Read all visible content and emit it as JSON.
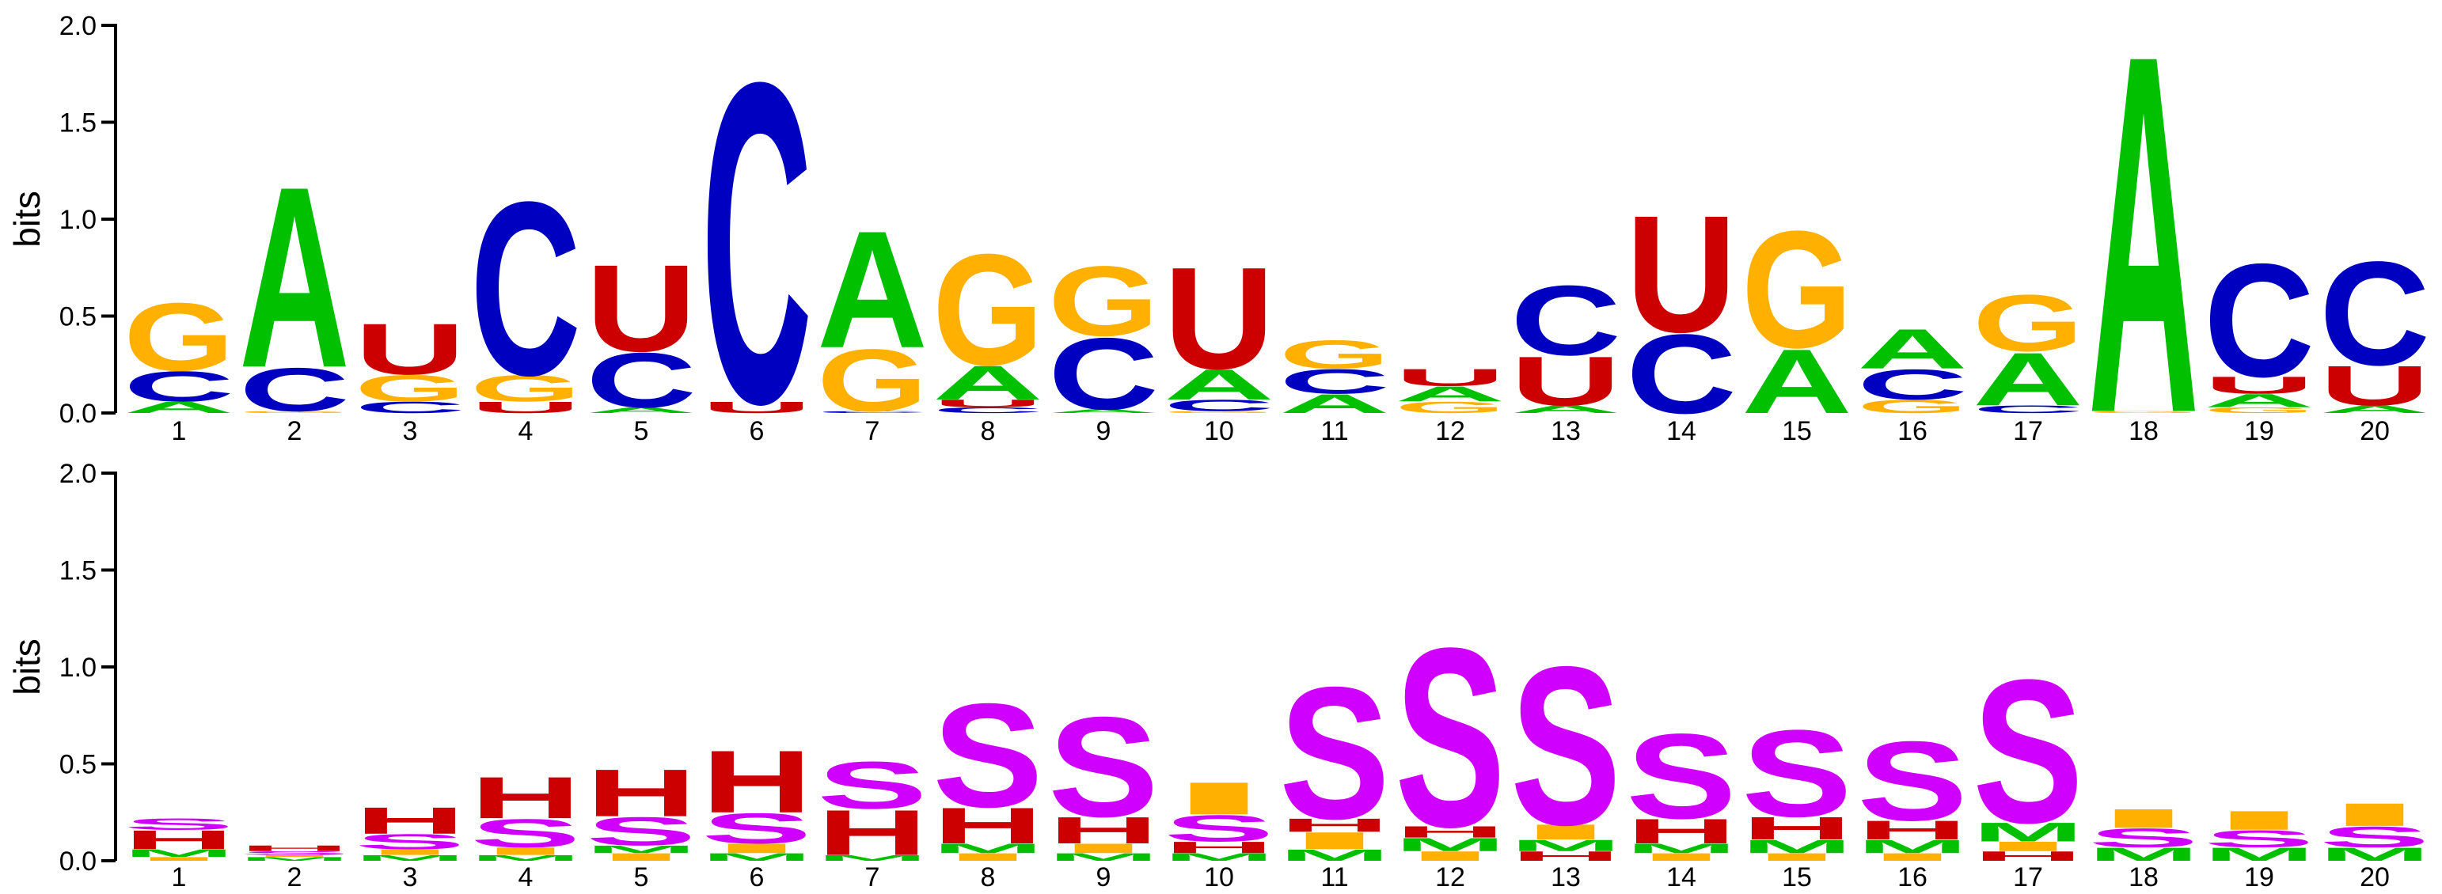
{
  "colors": {
    "A": "#00c000",
    "C": "#0000c0",
    "G": "#ffb000",
    "U": "#cc0000",
    "S": "#d000ff",
    "H": "#cc0000",
    "I": "#ffb000",
    "M": "#00c000"
  },
  "chart_data": [
    {
      "type": "sequence-logo",
      "ylabel": "bits",
      "ylim": [
        0,
        2.0
      ],
      "yticks": [
        "0.0",
        "0.5",
        "1.0",
        "1.5",
        "2.0"
      ],
      "positions": [
        "1",
        "2",
        "3",
        "4",
        "5",
        "6",
        "7",
        "8",
        "9",
        "10",
        "11",
        "12",
        "13",
        "14",
        "15",
        "16",
        "17",
        "18",
        "19",
        "20"
      ],
      "stacks": [
        [
          [
            "A",
            0.06
          ],
          [
            "C",
            0.16
          ],
          [
            "G",
            0.36
          ]
        ],
        [
          [
            "G",
            0.01
          ],
          [
            "C",
            0.23
          ],
          [
            "A",
            0.96
          ]
        ],
        [
          [
            "C",
            0.06
          ],
          [
            "G",
            0.14
          ],
          [
            "U",
            0.27
          ]
        ],
        [
          [
            "U",
            0.06
          ],
          [
            "G",
            0.14
          ],
          [
            "C",
            0.92
          ]
        ],
        [
          [
            "A",
            0.03
          ],
          [
            "C",
            0.29
          ],
          [
            "U",
            0.46
          ]
        ],
        [
          [
            "U",
            0.06
          ],
          [
            "C",
            1.7
          ]
        ],
        [
          [
            "C",
            0.01
          ],
          [
            "G",
            0.33
          ],
          [
            "A",
            0.62
          ]
        ],
        [
          [
            "C",
            0.03
          ],
          [
            "U",
            0.04
          ],
          [
            "A",
            0.18
          ],
          [
            "G",
            0.59
          ]
        ],
        [
          [
            "A",
            0.02
          ],
          [
            "C",
            0.38
          ],
          [
            "G",
            0.37
          ]
        ],
        [
          [
            "G",
            0.01
          ],
          [
            "C",
            0.06
          ],
          [
            "A",
            0.16
          ],
          [
            "U",
            0.54
          ]
        ],
        [
          [
            "A",
            0.1
          ],
          [
            "C",
            0.13
          ],
          [
            "G",
            0.15
          ]
        ],
        [
          [
            "G",
            0.06
          ],
          [
            "A",
            0.08
          ],
          [
            "U",
            0.09
          ]
        ],
        [
          [
            "A",
            0.04
          ],
          [
            "U",
            0.26
          ],
          [
            "C",
            0.37
          ]
        ],
        [
          [
            "C",
            0.42
          ],
          [
            "U",
            0.62
          ]
        ],
        [
          [
            "A",
            0.34
          ],
          [
            "G",
            0.62
          ]
        ],
        [
          [
            "G",
            0.07
          ],
          [
            "C",
            0.16
          ],
          [
            "A",
            0.21
          ]
        ],
        [
          [
            "C",
            0.04
          ],
          [
            "A",
            0.28
          ],
          [
            "G",
            0.3
          ]
        ],
        [
          [
            "G",
            0.01
          ],
          [
            "A",
            1.9
          ]
        ],
        [
          [
            "G",
            0.03
          ],
          [
            "A",
            0.07
          ],
          [
            "U",
            0.09
          ],
          [
            "C",
            0.6
          ]
        ],
        [
          [
            "A",
            0.04
          ],
          [
            "U",
            0.21
          ],
          [
            "C",
            0.55
          ]
        ]
      ]
    },
    {
      "type": "sequence-logo",
      "ylabel": "bits",
      "ylim": [
        0,
        2.0
      ],
      "yticks": [
        "0.0",
        "0.5",
        "1.0",
        "1.5",
        "2.0"
      ],
      "positions": [
        "1",
        "2",
        "3",
        "4",
        "5",
        "6",
        "7",
        "8",
        "9",
        "10",
        "11",
        "12",
        "13",
        "14",
        "15",
        "16",
        "17",
        "18",
        "19",
        "20"
      ],
      "stacks": [
        [
          [
            "I",
            0.02
          ],
          [
            "M",
            0.04
          ],
          [
            "H",
            0.1
          ],
          [
            "S",
            0.06
          ]
        ],
        [
          [
            "M",
            0.02
          ],
          [
            "I",
            0.01
          ],
          [
            "S",
            0.02
          ],
          [
            "H",
            0.03
          ]
        ],
        [
          [
            "M",
            0.03
          ],
          [
            "I",
            0.03
          ],
          [
            "S",
            0.08
          ],
          [
            "H",
            0.14
          ]
        ],
        [
          [
            "M",
            0.03
          ],
          [
            "I",
            0.04
          ],
          [
            "S",
            0.15
          ],
          [
            "H",
            0.22
          ]
        ],
        [
          [
            "I",
            0.04
          ],
          [
            "M",
            0.04
          ],
          [
            "S",
            0.15
          ],
          [
            "H",
            0.25
          ]
        ],
        [
          [
            "M",
            0.04
          ],
          [
            "I",
            0.05
          ],
          [
            "S",
            0.16
          ],
          [
            "H",
            0.33
          ]
        ],
        [
          [
            "M",
            0.03
          ],
          [
            "H",
            0.24
          ],
          [
            "S",
            0.25
          ]
        ],
        [
          [
            "I",
            0.04
          ],
          [
            "M",
            0.05
          ],
          [
            "H",
            0.19
          ],
          [
            "S",
            0.55
          ]
        ],
        [
          [
            "M",
            0.04
          ],
          [
            "I",
            0.05
          ],
          [
            "H",
            0.14
          ],
          [
            "S",
            0.53
          ]
        ],
        [
          [
            "M",
            0.04
          ],
          [
            "H",
            0.06
          ],
          [
            "S",
            0.14
          ],
          [
            "I",
            0.17
          ]
        ],
        [
          [
            "M",
            0.06
          ],
          [
            "I",
            0.09
          ],
          [
            "H",
            0.07
          ],
          [
            "S",
            0.7
          ]
        ],
        [
          [
            "I",
            0.05
          ],
          [
            "M",
            0.07
          ],
          [
            "H",
            0.06
          ],
          [
            "S",
            0.95
          ]
        ],
        [
          [
            "H",
            0.05
          ],
          [
            "M",
            0.06
          ],
          [
            "I",
            0.08
          ],
          [
            "S",
            0.84
          ]
        ],
        [
          [
            "I",
            0.04
          ],
          [
            "M",
            0.05
          ],
          [
            "H",
            0.13
          ],
          [
            "S",
            0.45
          ]
        ],
        [
          [
            "I",
            0.04
          ],
          [
            "M",
            0.07
          ],
          [
            "H",
            0.12
          ],
          [
            "S",
            0.46
          ]
        ],
        [
          [
            "I",
            0.04
          ],
          [
            "M",
            0.07
          ],
          [
            "H",
            0.1
          ],
          [
            "S",
            0.42
          ]
        ],
        [
          [
            "H",
            0.05
          ],
          [
            "I",
            0.05
          ],
          [
            "M",
            0.1
          ],
          [
            "S",
            0.76
          ]
        ],
        [
          [
            "M",
            0.07
          ],
          [
            "S",
            0.1
          ],
          [
            "I",
            0.1
          ]
        ],
        [
          [
            "M",
            0.07
          ],
          [
            "S",
            0.09
          ],
          [
            "I",
            0.1
          ]
        ],
        [
          [
            "M",
            0.07
          ],
          [
            "S",
            0.11
          ],
          [
            "I",
            0.12
          ]
        ]
      ]
    }
  ]
}
